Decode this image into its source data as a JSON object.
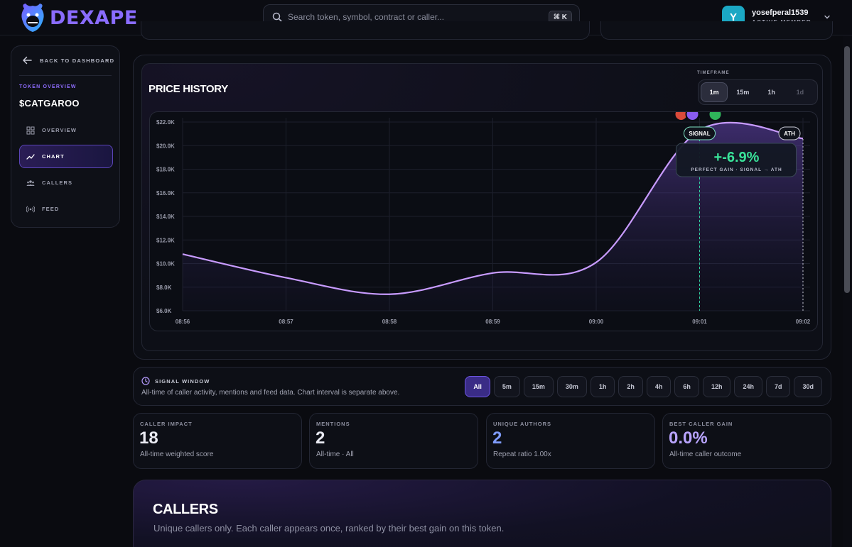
{
  "header": {
    "logo_text": "DEXAPE",
    "search": {
      "placeholder": "Search token, symbol, contract or caller...",
      "value": "",
      "shortcut": "⌘ K"
    },
    "user": {
      "initial": "Y",
      "name": "yosefperal1539",
      "role": "ACTIVE MEMBER"
    }
  },
  "sidebar": {
    "back_label": "BACK TO DASHBOARD",
    "section_label": "TOKEN OVERVIEW",
    "token": "$CATGAROO",
    "items": [
      {
        "label": "OVERVIEW",
        "icon": "grid-icon",
        "active": false
      },
      {
        "label": "CHART",
        "icon": "trend-icon",
        "active": true
      },
      {
        "label": "CALLERS",
        "icon": "users-icon",
        "active": false
      },
      {
        "label": "FEED",
        "icon": "broadcast-icon",
        "active": false
      }
    ]
  },
  "price_history": {
    "title": "PRICE HISTORY",
    "timeframe_label": "TIMEFRAME",
    "timeframes": [
      {
        "label": "1m",
        "state": "active"
      },
      {
        "label": "15m",
        "state": "normal"
      },
      {
        "label": "1h",
        "state": "normal"
      },
      {
        "label": "1d",
        "state": "disabled"
      }
    ],
    "signal_tag": "SIGNAL",
    "ath_tag": "ATH",
    "gain_value": "+-6.9%",
    "gain_caption": "PERFECT GAIN · SIGNAL → ATH"
  },
  "chart_data": {
    "type": "area",
    "x": [
      "08:56",
      "08:57",
      "08:58",
      "08:59",
      "09:00",
      "09:01",
      "09:02"
    ],
    "y_ticks": [
      "$22.0K",
      "$20.0K",
      "$18.0K",
      "$16.0K",
      "$14.0K",
      "$12.0K",
      "$10.0K",
      "$8.0K",
      "$6.0K"
    ],
    "ylim": [
      6000,
      22000
    ],
    "series": [
      {
        "values": [
          10800,
          8800,
          7400,
          9200,
          10100,
          21300,
          20600
        ]
      }
    ],
    "markers": {
      "signal_x": "09:01",
      "ath_x": "09:02"
    },
    "line_color": "#c89bff",
    "grid": true
  },
  "signal_window": {
    "title": "SIGNAL WINDOW",
    "description": "All-time of caller activity, mentions and feed data. Chart interval is separate above.",
    "options": [
      "All",
      "5m",
      "15m",
      "30m",
      "1h",
      "2h",
      "4h",
      "6h",
      "12h",
      "24h",
      "7d",
      "30d"
    ],
    "active": "All"
  },
  "stats": [
    {
      "label": "CALLER IMPACT",
      "value": "18",
      "sub": "All-time weighted score"
    },
    {
      "label": "MENTIONS",
      "value": "2",
      "sub": "All-time · All"
    },
    {
      "label": "UNIQUE AUTHORS",
      "value": "2",
      "sub": "Repeat ratio 1.00x"
    },
    {
      "label": "BEST CALLER GAIN",
      "value": "0.0%",
      "sub": "All-time caller outcome"
    }
  ],
  "callers": {
    "title": "CALLERS",
    "subtitle": "Unique callers only. Each caller appears once, ranked by their best gain on this token."
  }
}
